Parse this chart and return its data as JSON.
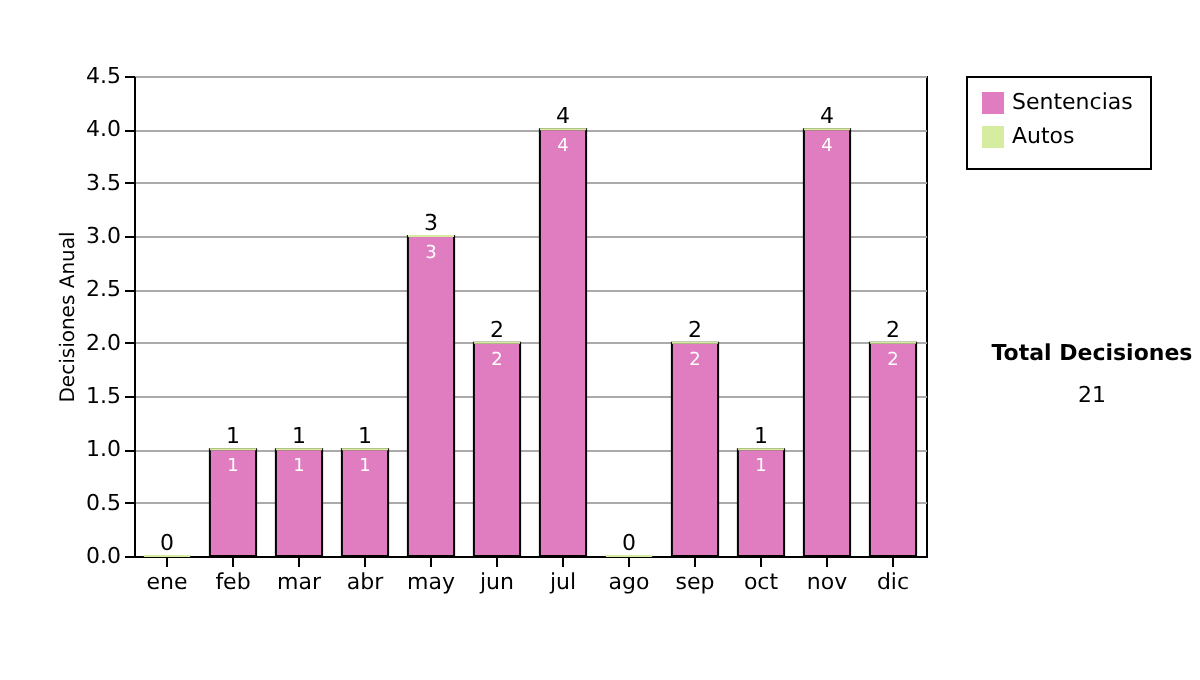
{
  "chart_data": {
    "type": "bar",
    "ylabel": "Decisiones Anual",
    "categories": [
      "ene",
      "feb",
      "mar",
      "abr",
      "may",
      "jun",
      "jul",
      "ago",
      "sep",
      "oct",
      "nov",
      "dic"
    ],
    "series": [
      {
        "name": "Sentencias",
        "color": "#e07cc0",
        "values": [
          0,
          1,
          1,
          1,
          3,
          2,
          4,
          0,
          2,
          1,
          4,
          2
        ],
        "value_labels": [
          null,
          "1",
          "1",
          "1",
          "3",
          "2",
          "4",
          null,
          "2",
          "1",
          "4",
          "2"
        ]
      },
      {
        "name": "Autos",
        "color": "#d6eca0",
        "values": [
          0,
          0,
          0,
          0,
          0,
          0,
          0,
          0,
          0,
          0,
          0,
          0
        ],
        "value_labels": [
          null,
          null,
          null,
          null,
          null,
          null,
          null,
          null,
          null,
          null,
          null,
          null
        ]
      }
    ],
    "stacked": true,
    "data_labels": true,
    "totals": [
      "0",
      "1",
      "1",
      "1",
      "3",
      "2",
      "4",
      "0",
      "2",
      "1",
      "4",
      "2"
    ],
    "ylim": [
      0,
      4.5
    ],
    "yticks": [
      {
        "value": 0,
        "label": "0.0"
      },
      {
        "value": 0.5,
        "label": "0.5"
      },
      {
        "value": 1,
        "label": "1.0"
      },
      {
        "value": 1.5,
        "label": "1.5"
      },
      {
        "value": 2,
        "label": "2.0"
      },
      {
        "value": 2.5,
        "label": "2.5"
      },
      {
        "value": 3,
        "label": "3.0"
      },
      {
        "value": 3.5,
        "label": "3.5"
      },
      {
        "value": 4,
        "label": "4.0"
      },
      {
        "value": 4.5,
        "label": "4.5"
      }
    ],
    "grid": "y",
    "legend": "right",
    "annotations": [
      "Total Decisiones",
      "21"
    ]
  }
}
